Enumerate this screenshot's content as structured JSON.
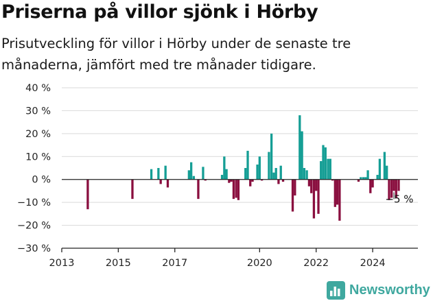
{
  "title": "Priserna på villor sjönk i Hörby",
  "subtitle": "Prisutveckling för villor i Hörby under de senaste tre månaderna, jämfört med tre månader tidigare.",
  "brand": "Newsworthy",
  "colors": {
    "positive": "#159e95",
    "negative": "#8a0f3f",
    "grid": "#d9d9d9",
    "axis": "#222222",
    "brand": "#3fa89f"
  },
  "chart_data": {
    "type": "bar",
    "ylim": [
      -30,
      40
    ],
    "xlim": [
      2013,
      2025.6
    ],
    "y_ticks": [
      40,
      30,
      20,
      10,
      0,
      -10,
      -20,
      -30
    ],
    "y_tick_labels": [
      "40 %",
      "30 %",
      "20 %",
      "10 %",
      "0 %",
      "−10 %",
      "−20 %",
      "−30 %"
    ],
    "x_ticks": [
      2013,
      2015,
      2017,
      2020,
      2022,
      2024
    ],
    "x_tick_labels": [
      "2013",
      "2015",
      "2017",
      "2020",
      "2022",
      "2024"
    ],
    "grid": true,
    "annotation": {
      "x": 2024.75,
      "value": -5,
      "label": "−5 %"
    },
    "series": [
      {
        "x": [
          2013.92,
          2015.5,
          2016.17,
          2016.42,
          2016.5,
          2016.67,
          2016.75,
          2017.5,
          2017.58,
          2017.67,
          2017.83,
          2018.0,
          2018.08,
          2018.67,
          2018.75,
          2018.83,
          2018.92,
          2019.0,
          2019.08,
          2019.17,
          2019.25,
          2019.5,
          2019.58,
          2019.67,
          2019.75,
          2019.92,
          2020.0,
          2020.08,
          2020.33,
          2020.42,
          2020.5,
          2020.58,
          2020.67,
          2020.75,
          2020.83,
          2021.17,
          2021.25,
          2021.42,
          2021.5,
          2021.58,
          2021.67,
          2021.75,
          2021.83,
          2021.92,
          2022.0,
          2022.08,
          2022.17,
          2022.25,
          2022.33,
          2022.42,
          2022.5,
          2022.58,
          2022.67,
          2022.75,
          2022.83,
          2023.5,
          2023.58,
          2023.67,
          2023.75,
          2023.83,
          2023.92,
          2024.0,
          2024.17,
          2024.25,
          2024.42,
          2024.5,
          2024.58,
          2024.67,
          2024.75,
          2024.83,
          2024.92
        ],
        "values": [
          -13,
          -8.5,
          4.5,
          5,
          -2,
          6,
          -3.5,
          4,
          7.5,
          1.5,
          -8.5,
          5.5,
          -0.5,
          2,
          10,
          4.5,
          -1.5,
          -1,
          -8.5,
          -8,
          -9,
          5,
          12.5,
          -3,
          -1,
          6.5,
          10,
          -0.5,
          12,
          20,
          3,
          5,
          -2,
          6,
          -1,
          -14,
          -7,
          28,
          21,
          5,
          4,
          -3,
          -6,
          -17,
          -5,
          -15,
          8,
          15,
          14,
          9,
          9,
          -0.5,
          -12,
          -11,
          -18,
          -1,
          1,
          1,
          1,
          4,
          -6,
          -3.5,
          2,
          9,
          12,
          6,
          -9,
          -8,
          -5,
          -8,
          -5
        ]
      }
    ]
  }
}
